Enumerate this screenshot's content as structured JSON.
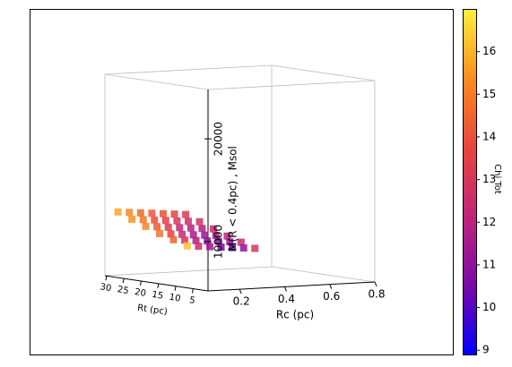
{
  "chart_data": {
    "type": "scatter3d",
    "x_label": "Rc (pc)",
    "y_label": "Rt (pc)",
    "z_label": "M(R < 0.4pc) , Msol",
    "colorbar_label": "Chi Tot",
    "xlim": [
      0.06,
      0.8
    ],
    "ylim": [
      0.7,
      30.5
    ],
    "zlim": [
      5200,
      24800
    ],
    "clim": [
      8.9,
      17.0
    ],
    "xticks": [
      0.2,
      0.4,
      0.6,
      0.8
    ],
    "yticks": [
      30,
      25,
      20,
      15,
      10,
      5
    ],
    "zticks": [
      10000,
      20000
    ],
    "cticks": [
      9,
      10,
      11,
      12,
      13,
      14,
      15,
      16
    ],
    "colormap": [
      "#0000ff",
      "#7a0aa8",
      "#c0247a",
      "#e8453c",
      "#fa8c1e",
      "#fff03c"
    ],
    "x": [
      0.08,
      0.13,
      0.18,
      0.23,
      0.28,
      0.33,
      0.38,
      0.08,
      0.13,
      0.18,
      0.23,
      0.28,
      0.33,
      0.38,
      0.08,
      0.13,
      0.18,
      0.23,
      0.28,
      0.33,
      0.38,
      0.08,
      0.13,
      0.18,
      0.23,
      0.28,
      0.33,
      0.38,
      0.08,
      0.13,
      0.18,
      0.23,
      0.28,
      0.33,
      0.38,
      0.08,
      0.13,
      0.18,
      0.23,
      0.28,
      0.33,
      0.38
    ],
    "y": [
      28,
      28,
      28,
      28,
      28,
      28,
      28,
      24,
      24,
      24,
      24,
      24,
      24,
      24,
      20,
      20,
      20,
      20,
      20,
      20,
      20,
      16,
      16,
      16,
      16,
      16,
      16,
      16,
      12,
      12,
      12,
      12,
      12,
      12,
      12,
      8,
      8,
      8,
      8,
      8,
      8,
      8
    ],
    "z": [
      11500,
      11400,
      11300,
      11200,
      11100,
      11000,
      10900,
      11000,
      10900,
      10800,
      10700,
      10600,
      10500,
      10400,
      10500,
      10400,
      10300,
      10200,
      10100,
      10000,
      9900,
      10000,
      9900,
      9800,
      9700,
      9600,
      9500,
      9400,
      9600,
      9500,
      9400,
      9300,
      9200,
      9100,
      9000,
      9200,
      9100,
      9000,
      8900,
      8800,
      8700,
      8600
    ],
    "c": [
      15.8,
      15.2,
      14.6,
      14.2,
      14.0,
      13.6,
      13.2,
      15.5,
      14.8,
      14.0,
      13.4,
      13.0,
      12.6,
      12.8,
      15.2,
      14.2,
      13.2,
      12.4,
      12.0,
      11.8,
      12.5,
      14.8,
      13.6,
      12.4,
      11.6,
      11.2,
      11.4,
      12.2,
      14.4,
      13.0,
      11.8,
      11.0,
      10.8,
      11.2,
      12.4,
      16.2,
      12.6,
      11.4,
      10.6,
      10.4,
      11.0,
      13.0
    ]
  }
}
